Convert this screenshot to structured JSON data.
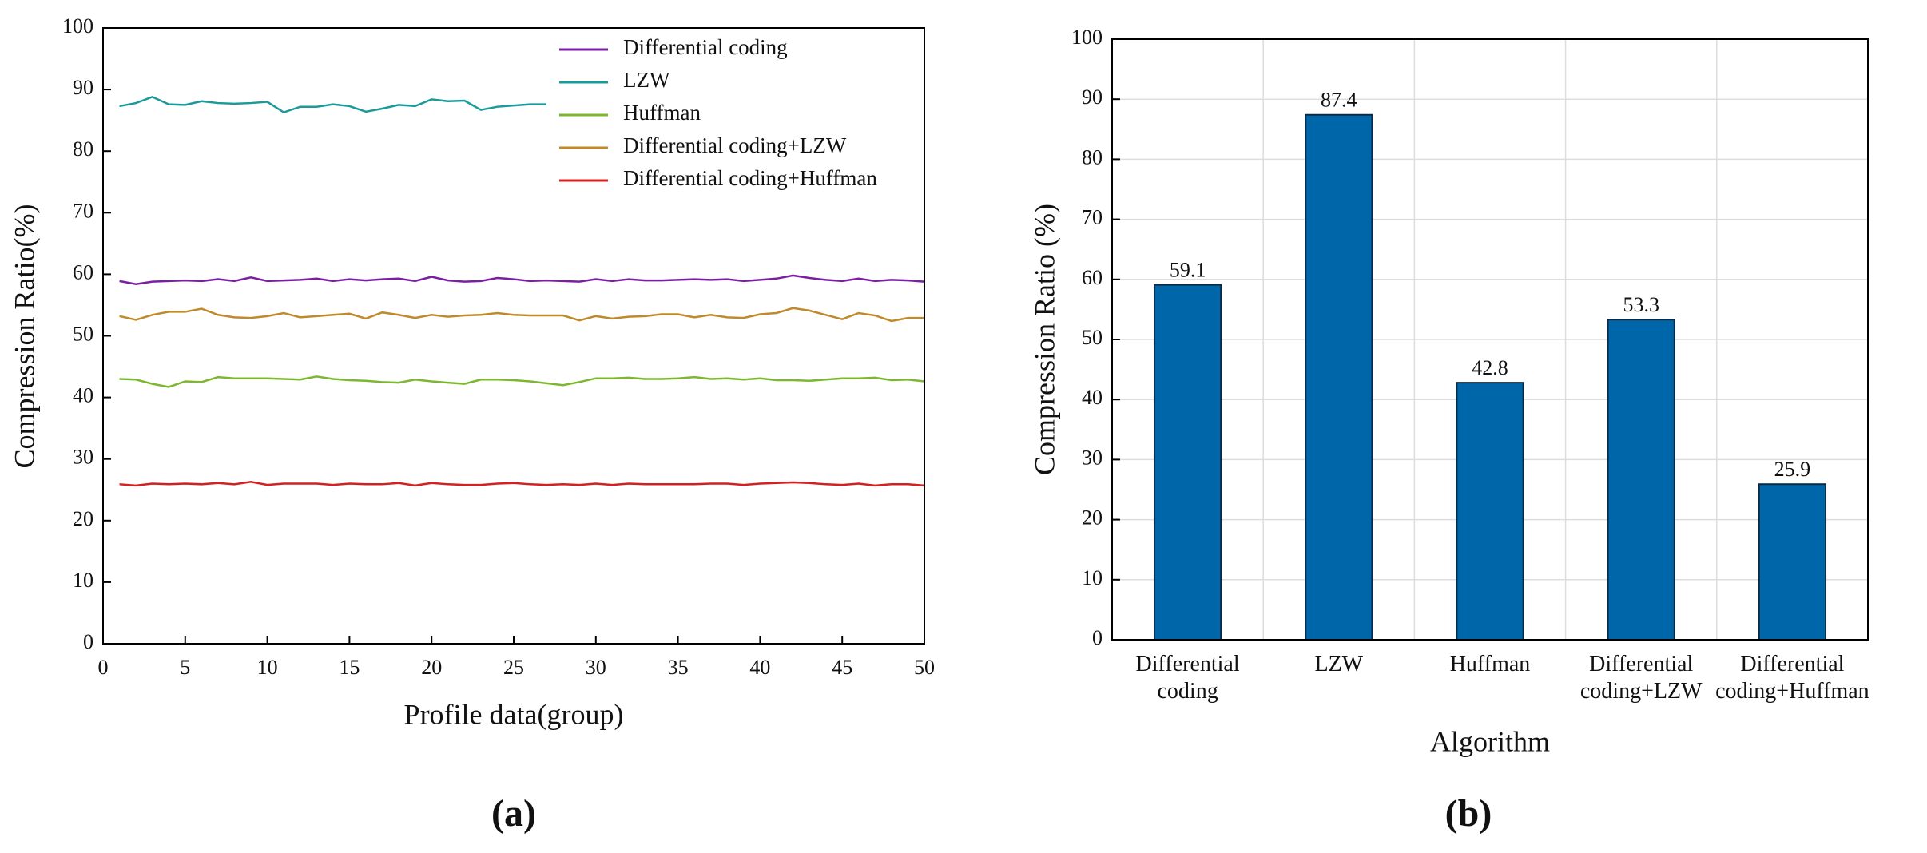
{
  "chart_data": [
    {
      "type": "line",
      "label": "(a)",
      "xlabel": "Profile data(group)",
      "ylabel": "Compression Ratio(%)",
      "x": [
        1,
        2,
        3,
        4,
        5,
        6,
        7,
        8,
        9,
        10,
        11,
        12,
        13,
        14,
        15,
        16,
        17,
        18,
        19,
        20,
        21,
        22,
        23,
        24,
        25,
        26,
        27,
        28,
        29,
        30,
        31,
        32,
        33,
        34,
        35,
        36,
        37,
        38,
        39,
        40,
        41,
        42,
        43,
        44,
        45,
        46,
        47,
        48,
        49,
        50
      ],
      "xlim": [
        0,
        50
      ],
      "xticks": [
        0,
        5,
        10,
        15,
        20,
        25,
        30,
        35,
        40,
        45,
        50
      ],
      "ylim": [
        0,
        100
      ],
      "yticks": [
        0,
        10,
        20,
        30,
        40,
        50,
        60,
        70,
        80,
        90,
        100
      ],
      "grid": false,
      "legend": "upper right",
      "series": [
        {
          "name": "Differential coding",
          "color": "#7b1fa2",
          "values": [
            58.9,
            58.4,
            58.8,
            58.9,
            59.0,
            58.9,
            59.2,
            58.9,
            59.5,
            58.9,
            59.0,
            59.1,
            59.3,
            58.9,
            59.2,
            59.0,
            59.2,
            59.3,
            58.9,
            59.6,
            59.0,
            58.8,
            58.9,
            59.4,
            59.2,
            58.9,
            59.0,
            58.9,
            58.8,
            59.2,
            58.9,
            59.2,
            59.0,
            59.0,
            59.1,
            59.2,
            59.1,
            59.2,
            58.9,
            59.1,
            59.3,
            59.8,
            59.4,
            59.1,
            58.9,
            59.3,
            58.9,
            59.1,
            59.0,
            58.8
          ]
        },
        {
          "name": "LZW",
          "color": "#1a9a9a",
          "values": [
            87.3,
            87.8,
            88.8,
            87.6,
            87.5,
            88.1,
            87.8,
            87.7,
            87.8,
            88.0,
            86.3,
            87.2,
            87.2,
            87.6,
            87.3,
            86.4,
            86.9,
            87.5,
            87.3,
            88.4,
            88.1,
            88.2,
            86.7,
            87.2,
            87.4,
            87.6,
            87.6,
            87.6,
            null,
            null,
            null,
            null,
            null,
            null,
            null,
            null,
            null,
            null,
            null,
            null,
            null,
            null,
            null,
            null,
            null,
            null,
            null,
            null,
            null,
            null
          ]
        },
        {
          "name": "Huffman",
          "color": "#7cb82f",
          "values": [
            43.0,
            42.9,
            42.2,
            41.7,
            42.6,
            42.5,
            43.3,
            43.1,
            43.1,
            43.1,
            43.0,
            42.9,
            43.4,
            43.0,
            42.8,
            42.7,
            42.5,
            42.4,
            42.9,
            42.6,
            42.4,
            42.2,
            42.9,
            42.9,
            42.8,
            42.6,
            42.3,
            42.0,
            42.5,
            43.1,
            43.1,
            43.2,
            43.0,
            43.0,
            43.1,
            43.3,
            43.0,
            43.1,
            42.9,
            43.1,
            42.8,
            42.8,
            42.7,
            42.9,
            43.1,
            43.1,
            43.2,
            42.8,
            42.9,
            42.6
          ]
        },
        {
          "name": "Differential coding+LZW",
          "color": "#c08a2a",
          "values": [
            53.2,
            52.6,
            53.4,
            53.9,
            53.9,
            54.4,
            53.4,
            53.0,
            52.9,
            53.2,
            53.7,
            53.0,
            53.2,
            53.4,
            53.6,
            52.8,
            53.8,
            53.4,
            52.9,
            53.4,
            53.1,
            53.3,
            53.4,
            53.7,
            53.4,
            53.3,
            53.3,
            53.3,
            52.5,
            53.2,
            52.8,
            53.1,
            53.2,
            53.5,
            53.5,
            53.0,
            53.4,
            53.0,
            52.9,
            53.5,
            53.7,
            54.5,
            54.1,
            53.4,
            52.7,
            53.7,
            53.3,
            52.4,
            52.9,
            52.9
          ]
        },
        {
          "name": "Differential coding+Huffman",
          "color": "#d42020",
          "values": [
            25.9,
            25.7,
            26.0,
            25.9,
            26.0,
            25.9,
            26.1,
            25.9,
            26.3,
            25.8,
            26.0,
            26.0,
            26.0,
            25.8,
            26.0,
            25.9,
            25.9,
            26.1,
            25.7,
            26.1,
            25.9,
            25.8,
            25.8,
            26.0,
            26.1,
            25.9,
            25.8,
            25.9,
            25.8,
            26.0,
            25.8,
            26.0,
            25.9,
            25.9,
            25.9,
            25.9,
            26.0,
            26.0,
            25.8,
            26.0,
            26.1,
            26.2,
            26.1,
            25.9,
            25.8,
            26.0,
            25.7,
            25.9,
            25.9,
            25.7
          ]
        }
      ]
    },
    {
      "type": "bar",
      "label": "(b)",
      "xlabel": "Algorithm",
      "ylabel": "Compression Ratio (%)",
      "categories": [
        "Differential coding",
        "LZW",
        "Huffman",
        "Differential coding+LZW",
        "Differential coding+Huffman"
      ],
      "values": [
        59.1,
        87.4,
        42.8,
        53.3,
        25.9
      ],
      "color": "#0066aa",
      "ylim": [
        0,
        100
      ],
      "yticks": [
        0,
        10,
        20,
        30,
        40,
        50,
        60,
        70,
        80,
        90,
        100
      ],
      "grid": true
    }
  ]
}
